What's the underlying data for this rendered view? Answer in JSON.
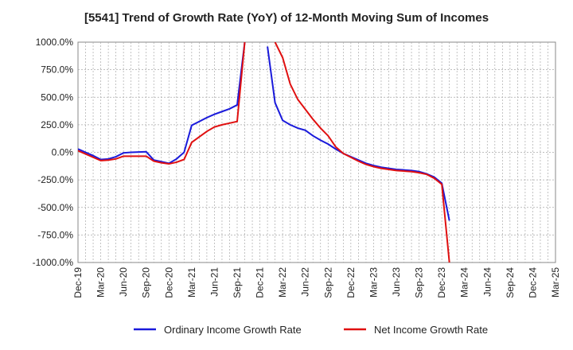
{
  "chart_data": {
    "type": "line",
    "title": "[5541]  Trend of Growth Rate (YoY) of 12-Month Moving Sum of Incomes",
    "xlabel": "",
    "ylabel": "",
    "ylim": [
      -1000,
      1000
    ],
    "ytick_labels": [
      "1000.0%",
      "750.0%",
      "500.0%",
      "250.0%",
      "0.0%",
      "-250.0%",
      "-500.0%",
      "-750.0%",
      "-1000.0%"
    ],
    "ytick_values": [
      1000,
      750,
      500,
      250,
      0,
      -250,
      -500,
      -750,
      -1000
    ],
    "x_ticks": [
      "Dec-19",
      "Mar-20",
      "Jun-20",
      "Sep-20",
      "Dec-20",
      "Mar-21",
      "Jun-21",
      "Sep-21",
      "Dec-21",
      "Mar-22",
      "Jun-22",
      "Sep-22",
      "Dec-22",
      "Mar-23",
      "Jun-23",
      "Sep-23",
      "Dec-23",
      "Mar-24",
      "Jun-24",
      "Sep-24",
      "Dec-24",
      "Mar-25"
    ],
    "grid": true,
    "legend_position": "bottom",
    "series": [
      {
        "name": "Ordinary Income Growth Rate",
        "color": "#1a1adb",
        "points": [
          [
            "Dec-19",
            30
          ],
          [
            "Jan-20",
            0
          ],
          [
            "Feb-20",
            -30
          ],
          [
            "Mar-20",
            -65
          ],
          [
            "Apr-20",
            -60
          ],
          [
            "May-20",
            -40
          ],
          [
            "Jun-20",
            -5
          ],
          [
            "Jul-20",
            0
          ],
          [
            "Aug-20",
            3
          ],
          [
            "Sep-20",
            5
          ],
          [
            "Oct-20",
            -70
          ],
          [
            "Nov-20",
            -85
          ],
          [
            "Dec-20",
            -100
          ],
          [
            "Jan-21",
            -60
          ],
          [
            "Feb-21",
            0
          ],
          [
            "Mar-21",
            245
          ],
          [
            "Apr-21",
            280
          ],
          [
            "May-21",
            315
          ],
          [
            "Jun-21",
            345
          ],
          [
            "Jul-21",
            370
          ],
          [
            "Aug-21",
            395
          ],
          [
            "Sep-21",
            430
          ],
          [
            "Oct-21",
            1000
          ],
          [
            "Jan-22",
            960
          ],
          [
            "Feb-22",
            450
          ],
          [
            "Mar-22",
            290
          ],
          [
            "Apr-22",
            250
          ],
          [
            "May-22",
            220
          ],
          [
            "Jun-22",
            200
          ],
          [
            "Jul-22",
            150
          ],
          [
            "Aug-22",
            110
          ],
          [
            "Sep-22",
            75
          ],
          [
            "Oct-22",
            30
          ],
          [
            "Nov-22",
            -10
          ],
          [
            "Dec-22",
            -40
          ],
          [
            "Jan-23",
            -70
          ],
          [
            "Feb-23",
            -100
          ],
          [
            "Mar-23",
            -120
          ],
          [
            "Apr-23",
            -135
          ],
          [
            "May-23",
            -145
          ],
          [
            "Jun-23",
            -155
          ],
          [
            "Jul-23",
            -160
          ],
          [
            "Aug-23",
            -165
          ],
          [
            "Sep-23",
            -175
          ],
          [
            "Oct-23",
            -195
          ],
          [
            "Nov-23",
            -225
          ],
          [
            "Dec-23",
            -280
          ],
          [
            "Jan-24",
            -620
          ]
        ]
      },
      {
        "name": "Net Income Growth Rate",
        "color": "#e01010",
        "points": [
          [
            "Dec-19",
            15
          ],
          [
            "Jan-20",
            -15
          ],
          [
            "Feb-20",
            -45
          ],
          [
            "Mar-20",
            -75
          ],
          [
            "Apr-20",
            -70
          ],
          [
            "May-20",
            -60
          ],
          [
            "Jun-20",
            -35
          ],
          [
            "Jul-20",
            -35
          ],
          [
            "Aug-20",
            -35
          ],
          [
            "Sep-20",
            -35
          ],
          [
            "Oct-20",
            -80
          ],
          [
            "Nov-20",
            -95
          ],
          [
            "Dec-20",
            -105
          ],
          [
            "Jan-21",
            -90
          ],
          [
            "Feb-21",
            -65
          ],
          [
            "Mar-21",
            90
          ],
          [
            "Apr-21",
            140
          ],
          [
            "May-21",
            190
          ],
          [
            "Jun-21",
            230
          ],
          [
            "Jul-21",
            250
          ],
          [
            "Aug-21",
            265
          ],
          [
            "Sep-21",
            280
          ],
          [
            "Oct-21",
            1000
          ],
          [
            "Feb-22",
            1000
          ],
          [
            "Mar-22",
            860
          ],
          [
            "Apr-22",
            620
          ],
          [
            "May-22",
            480
          ],
          [
            "Jun-22",
            390
          ],
          [
            "Jul-22",
            300
          ],
          [
            "Aug-22",
            220
          ],
          [
            "Sep-22",
            150
          ],
          [
            "Oct-22",
            50
          ],
          [
            "Nov-22",
            -10
          ],
          [
            "Dec-22",
            -45
          ],
          [
            "Jan-23",
            -80
          ],
          [
            "Feb-23",
            -110
          ],
          [
            "Mar-23",
            -130
          ],
          [
            "Apr-23",
            -145
          ],
          [
            "May-23",
            -155
          ],
          [
            "Jun-23",
            -165
          ],
          [
            "Jul-23",
            -170
          ],
          [
            "Aug-23",
            -175
          ],
          [
            "Sep-23",
            -185
          ],
          [
            "Oct-23",
            -200
          ],
          [
            "Nov-23",
            -235
          ],
          [
            "Dec-23",
            -290
          ],
          [
            "Jan-24",
            -1000
          ]
        ]
      }
    ]
  }
}
